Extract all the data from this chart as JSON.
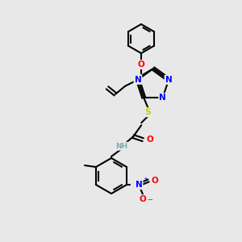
{
  "bg_color": "#e8e8e8",
  "atom_colors": {
    "C": "#000000",
    "N": "#0000ff",
    "O": "#ff0000",
    "S": "#cccc00",
    "H": "#7faaaa"
  },
  "bond_color": "#000000",
  "bond_width": 1.5,
  "font_size": 7.5,
  "font_size_small": 6.5
}
